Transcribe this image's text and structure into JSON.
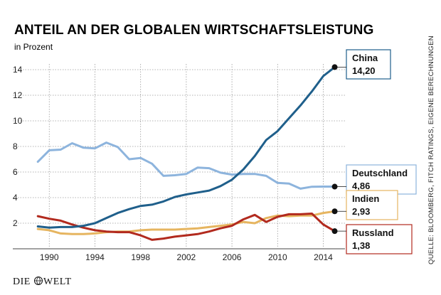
{
  "chart_data": {
    "type": "line",
    "title": "ANTEIL AN DER GLOBALEN WIRTSCHAFTSLEISTUNG",
    "subtitle": "in Prozent",
    "x": [
      1989,
      1990,
      1991,
      1992,
      1993,
      1994,
      1995,
      1996,
      1997,
      1998,
      1999,
      2000,
      2001,
      2002,
      2003,
      2004,
      2005,
      2006,
      2007,
      2008,
      2009,
      2010,
      2011,
      2012,
      2013,
      2014,
      2015
    ],
    "ylim": [
      0,
      15
    ],
    "xlim": [
      1988.8,
      2015.9
    ],
    "x_ticks": [
      1990,
      1994,
      1998,
      2002,
      2006,
      2010,
      2014
    ],
    "y_ticks": [
      2,
      4,
      6,
      8,
      10,
      12,
      14
    ],
    "grid": "horizontal",
    "series": [
      {
        "name": "China",
        "color": "#1f5f8b",
        "end_value": "14,20",
        "values": [
          1.75,
          1.65,
          1.7,
          1.7,
          1.8,
          2.0,
          2.4,
          2.8,
          3.1,
          3.35,
          3.45,
          3.7,
          4.05,
          4.25,
          4.4,
          4.55,
          4.9,
          5.4,
          6.2,
          7.25,
          8.5,
          9.2,
          10.2,
          11.2,
          12.3,
          13.5,
          14.2
        ]
      },
      {
        "name": "Deutschland",
        "color": "#8db4dd",
        "end_value": "4,86",
        "values": [
          6.8,
          7.7,
          7.75,
          8.25,
          7.9,
          7.85,
          8.3,
          7.95,
          7.0,
          7.1,
          6.65,
          5.7,
          5.75,
          5.85,
          6.35,
          6.3,
          5.95,
          5.8,
          5.85,
          5.85,
          5.7,
          5.15,
          5.1,
          4.7,
          4.85,
          4.86,
          4.86
        ]
      },
      {
        "name": "Indien",
        "color": "#e6b560",
        "end_value": "2,93",
        "values": [
          1.55,
          1.45,
          1.2,
          1.15,
          1.15,
          1.2,
          1.3,
          1.35,
          1.35,
          1.45,
          1.5,
          1.5,
          1.5,
          1.55,
          1.6,
          1.7,
          1.8,
          1.9,
          2.1,
          2.0,
          2.4,
          2.6,
          2.55,
          2.6,
          2.6,
          2.8,
          2.93
        ]
      },
      {
        "name": "Russland",
        "color": "#b22a1e",
        "end_value": "1,38",
        "values": [
          2.55,
          2.35,
          2.2,
          1.9,
          1.65,
          1.45,
          1.35,
          1.3,
          1.3,
          1.05,
          0.7,
          0.8,
          0.95,
          1.05,
          1.15,
          1.35,
          1.6,
          1.8,
          2.3,
          2.65,
          2.1,
          2.5,
          2.7,
          2.7,
          2.75,
          1.9,
          1.38
        ]
      }
    ]
  },
  "source": "QUELLE: BLOOMBERG, FITCH RATINGS, EIGENE BERECHNUNGEN",
  "brand": {
    "left": "DIE",
    "right": "WELT",
    "mark_icon": "welt-globe-icon"
  }
}
